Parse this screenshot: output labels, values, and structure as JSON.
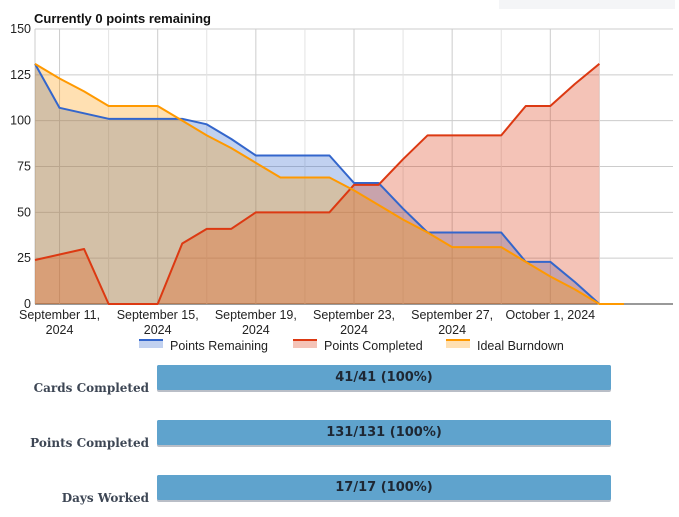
{
  "chart_data": {
    "type": "area",
    "title": "Currently 0 points remaining",
    "xlabel": "",
    "ylabel": "",
    "ylim": [
      0,
      150
    ],
    "yticks": [
      0,
      25,
      50,
      75,
      100,
      125,
      150
    ],
    "xlim": [
      "2024-09-10",
      "2024-10-06"
    ],
    "xticks": [
      {
        "date": "2024-09-11",
        "line1": "September 11,",
        "line2": "2024"
      },
      {
        "date": "2024-09-15",
        "line1": "September 15,",
        "line2": "2024"
      },
      {
        "date": "2024-09-19",
        "line1": "September 19,",
        "line2": "2024"
      },
      {
        "date": "2024-09-23",
        "line1": "September 23,",
        "line2": "2024"
      },
      {
        "date": "2024-09-27",
        "line1": "September 27,",
        "line2": "2024"
      },
      {
        "date": "2024-10-01",
        "line1": "October 1, 2024",
        "line2": ""
      }
    ],
    "grid": true,
    "legend_position": "bottom",
    "series": [
      {
        "name": "Points Remaining",
        "line_color": "#3366cc",
        "fill_color": "#a9bfe8",
        "points": [
          [
            "2024-09-10",
            131
          ],
          [
            "2024-09-11",
            107
          ],
          [
            "2024-09-12",
            104
          ],
          [
            "2024-09-13",
            101
          ],
          [
            "2024-09-14",
            101
          ],
          [
            "2024-09-15",
            101
          ],
          [
            "2024-09-16",
            101
          ],
          [
            "2024-09-17",
            98
          ],
          [
            "2024-09-18",
            90
          ],
          [
            "2024-09-19",
            81
          ],
          [
            "2024-09-20",
            81
          ],
          [
            "2024-09-21",
            81
          ],
          [
            "2024-09-22",
            81
          ],
          [
            "2024-09-23",
            66
          ],
          [
            "2024-09-24",
            66
          ],
          [
            "2024-09-25",
            52
          ],
          [
            "2024-09-26",
            39
          ],
          [
            "2024-09-27",
            39
          ],
          [
            "2024-09-28",
            39
          ],
          [
            "2024-09-29",
            39
          ],
          [
            "2024-09-30",
            23
          ],
          [
            "2024-10-01",
            23
          ],
          [
            "2024-10-02",
            12
          ],
          [
            "2024-10-03",
            0
          ]
        ]
      },
      {
        "name": "Points Completed",
        "line_color": "#dc3912",
        "fill_color": "#f0a394",
        "points": [
          [
            "2024-09-10",
            24
          ],
          [
            "2024-09-11",
            27
          ],
          [
            "2024-09-12",
            30
          ],
          [
            "2024-09-13",
            0
          ],
          [
            "2024-09-14",
            0
          ],
          [
            "2024-09-15",
            0
          ],
          [
            "2024-09-16",
            33
          ],
          [
            "2024-09-17",
            41
          ],
          [
            "2024-09-18",
            41
          ],
          [
            "2024-09-19",
            50
          ],
          [
            "2024-09-20",
            50
          ],
          [
            "2024-09-21",
            50
          ],
          [
            "2024-09-22",
            50
          ],
          [
            "2024-09-23",
            65
          ],
          [
            "2024-09-24",
            65
          ],
          [
            "2024-09-25",
            79
          ],
          [
            "2024-09-26",
            92
          ],
          [
            "2024-09-27",
            92
          ],
          [
            "2024-09-28",
            92
          ],
          [
            "2024-09-29",
            92
          ],
          [
            "2024-09-30",
            108
          ],
          [
            "2024-10-01",
            108
          ],
          [
            "2024-10-02",
            120
          ],
          [
            "2024-10-03",
            131
          ]
        ]
      },
      {
        "name": "Ideal Burndown",
        "line_color": "#ff9900",
        "fill_color": "#fdd79a",
        "points": [
          [
            "2024-09-10",
            131
          ],
          [
            "2024-09-11",
            123
          ],
          [
            "2024-09-12",
            116
          ],
          [
            "2024-09-13",
            108
          ],
          [
            "2024-09-14",
            108
          ],
          [
            "2024-09-15",
            108
          ],
          [
            "2024-09-16",
            100
          ],
          [
            "2024-09-17",
            92
          ],
          [
            "2024-09-18",
            85
          ],
          [
            "2024-09-19",
            77
          ],
          [
            "2024-09-20",
            69
          ],
          [
            "2024-09-21",
            69
          ],
          [
            "2024-09-22",
            69
          ],
          [
            "2024-09-23",
            62
          ],
          [
            "2024-09-24",
            54
          ],
          [
            "2024-09-25",
            46
          ],
          [
            "2024-09-26",
            39
          ],
          [
            "2024-09-27",
            31
          ],
          [
            "2024-09-28",
            31
          ],
          [
            "2024-09-29",
            31
          ],
          [
            "2024-09-30",
            23
          ],
          [
            "2024-10-01",
            15
          ],
          [
            "2024-10-02",
            8
          ],
          [
            "2024-10-03",
            0
          ],
          [
            "2024-10-04",
            0
          ]
        ]
      }
    ]
  },
  "stats": [
    {
      "label": "Cards Completed",
      "value": "41/41 (100%)",
      "fraction": 1.0
    },
    {
      "label": "Points Completed",
      "value": "131/131 (100%)",
      "fraction": 1.0
    },
    {
      "label": "Days Worked",
      "value": "17/17 (100%)",
      "fraction": 1.0
    }
  ]
}
